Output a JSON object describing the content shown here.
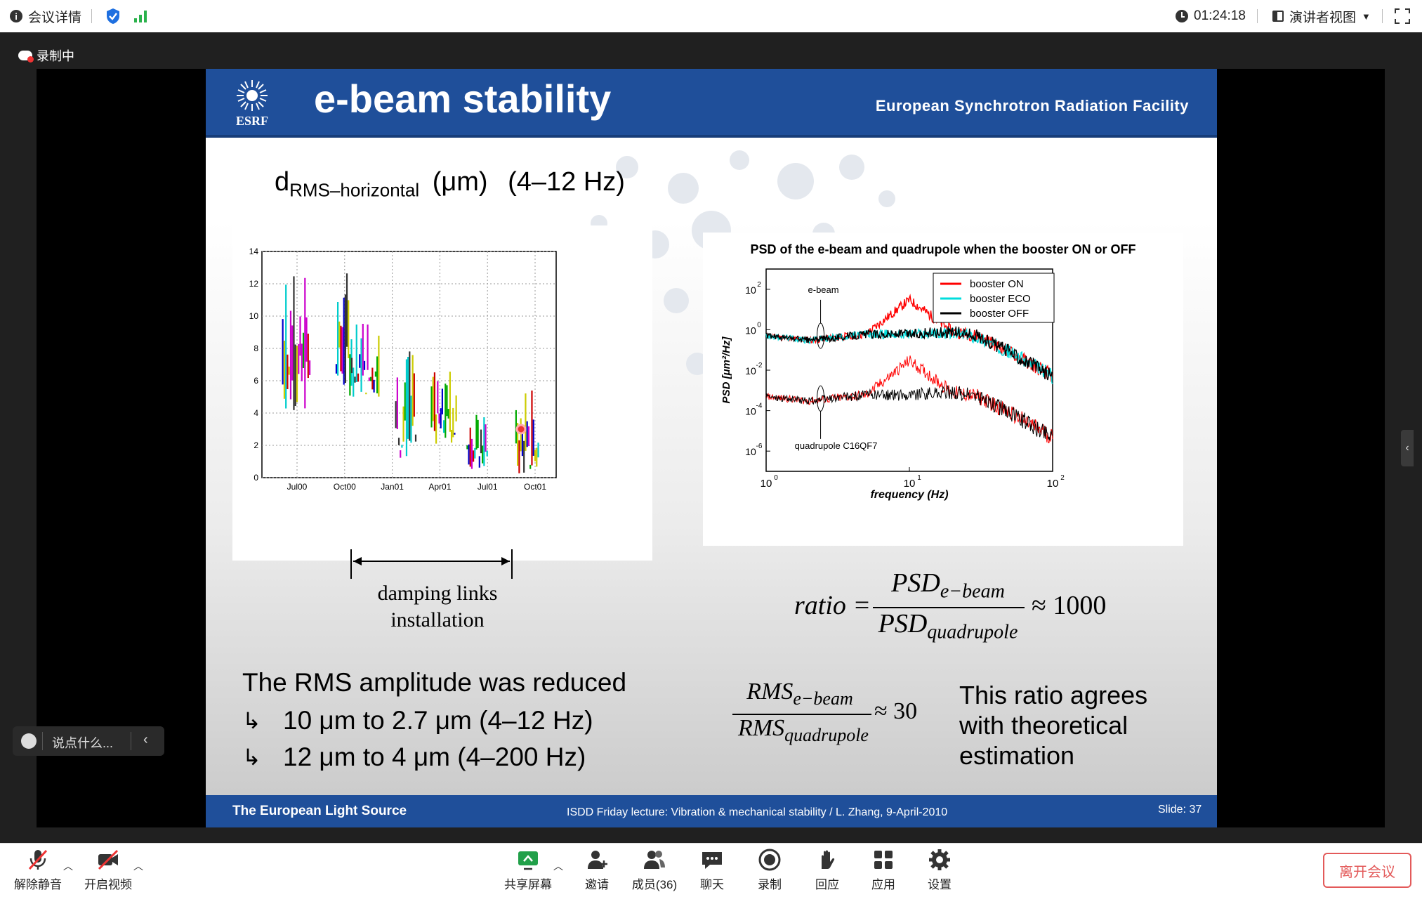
{
  "topbar": {
    "meeting_details": "会议详情",
    "timer": "01:24:18",
    "view_mode": "演讲者视图"
  },
  "recording_badge": "录制中",
  "slide": {
    "title": "e-beam stability",
    "org": "European Synchrotron Radiation Facility",
    "logo_text": "ESRF",
    "left_heading_d": "d",
    "left_heading_sub": "RMS–horizontal",
    "left_heading_unit": "(μm)",
    "left_heading_range": "(4–12 Hz)",
    "damping_label_1": "damping links",
    "damping_label_2": "installation",
    "rms_line": "The RMS amplitude was reduced",
    "rms_item_1": "10 μm to 2.7 μm (4–12 Hz)",
    "rms_item_2": "12 μm to 4 μm (4–200 Hz)",
    "ratio_formula": {
      "lhs": "ratio =",
      "num": "PSD",
      "num_sub": "e−beam",
      "den": "PSD",
      "den_sub": "quadrupole",
      "approx": "≈ 1000"
    },
    "rms_formula": {
      "num": "RMS",
      "num_sub": "e−beam",
      "den": "RMS",
      "den_sub": "quadrupole",
      "approx": "≈ 30"
    },
    "agree_text_1": "This ratio agrees",
    "agree_text_2": "with theoretical",
    "agree_text_3": "estimation",
    "footer_left": "The European Light Source",
    "footer_mid": "ISDD Friday lecture: Vibration & mechanical stability / L. Zhang,  9-April-2010",
    "footer_right": "Slide: 37"
  },
  "chart_data": [
    {
      "type": "line",
      "title": "",
      "xlabel": "",
      "ylabel": "",
      "x_ticks": [
        "Jul00",
        "Oct00",
        "Jan01",
        "Apr01",
        "Jul01",
        "Oct01"
      ],
      "y_ticks": [
        "0",
        "2",
        "4",
        "6",
        "8",
        "10",
        "12",
        "14"
      ],
      "ylim": [
        0,
        14
      ],
      "grid": true,
      "series_summary": [
        {
          "x_period": "Jul00",
          "y_range": [
            4,
            13
          ]
        },
        {
          "x_period": "Oct00",
          "y_range": [
            5,
            13
          ]
        },
        {
          "x_period": "Nov00-Dec00",
          "y_range": [
            5,
            10
          ]
        },
        {
          "x_period": "Feb01",
          "y_range": [
            1,
            8
          ]
        },
        {
          "x_period": "Apr01",
          "y_range": [
            2,
            7
          ]
        },
        {
          "x_period": "Jun01",
          "y_range": [
            0.5,
            4
          ]
        },
        {
          "x_period": "Sep01-Oct01",
          "y_range": [
            0,
            5.5
          ]
        }
      ],
      "series_colors": [
        "#0000cc",
        "#cc00cc",
        "#00aa00",
        "#cccc00",
        "#00cccc",
        "#cc0000",
        "#333333"
      ]
    },
    {
      "type": "line",
      "title": "PSD of the e-beam and quadrupole when the booster ON or OFF",
      "xlabel": "frequency (Hz)",
      "ylabel": "PSD [μm²/Hz]",
      "x_scale": "log",
      "y_scale": "log",
      "xlim": [
        1,
        100
      ],
      "ylim": [
        1e-07,
        1000.0
      ],
      "x_ticks": [
        "10",
        "10",
        "10"
      ],
      "x_tick_exps": [
        "0",
        "1",
        "2"
      ],
      "y_ticks": [
        "10",
        "10",
        "10",
        "10",
        "10"
      ],
      "y_tick_exps": [
        "2",
        "0",
        "-2",
        "-4",
        "-6"
      ],
      "legend": [
        "booster ON",
        "booster ECO",
        "booster OFF"
      ],
      "legend_placement": "top-right",
      "colors": {
        "booster ON": "#ff0000",
        "booster ECO": "#00dddd",
        "booster OFF": "#000000"
      },
      "annotations": [
        "e-beam",
        "quadrupole C16QF7"
      ],
      "series": [
        {
          "name": "booster ON",
          "x": [
            1,
            2,
            5,
            10,
            20,
            30,
            50,
            100
          ],
          "y": [
            0.5,
            0.3,
            0.6,
            30,
            0.8,
            0.5,
            0.08,
            0.005
          ]
        },
        {
          "name": "booster ECO",
          "x": [
            1,
            2,
            5,
            10,
            20,
            30,
            50,
            100
          ],
          "y": [
            0.5,
            0.3,
            0.6,
            0.6,
            0.7,
            0.4,
            0.08,
            0.005
          ]
        },
        {
          "name": "booster OFF",
          "x": [
            1,
            2,
            5,
            10,
            20,
            30,
            50,
            100
          ],
          "y": [
            0.5,
            0.3,
            0.6,
            0.6,
            0.8,
            0.5,
            0.08,
            0.005
          ]
        }
      ]
    }
  ],
  "bottombar": {
    "mute": "解除静音",
    "video": "开启视频",
    "share": "共享屏幕",
    "invite": "邀请",
    "members": "成员(36)",
    "chat": "聊天",
    "record": "录制",
    "react": "回应",
    "apps": "应用",
    "settings": "设置",
    "leave": "离开会议"
  },
  "chat_input_placeholder": "说点什么..."
}
